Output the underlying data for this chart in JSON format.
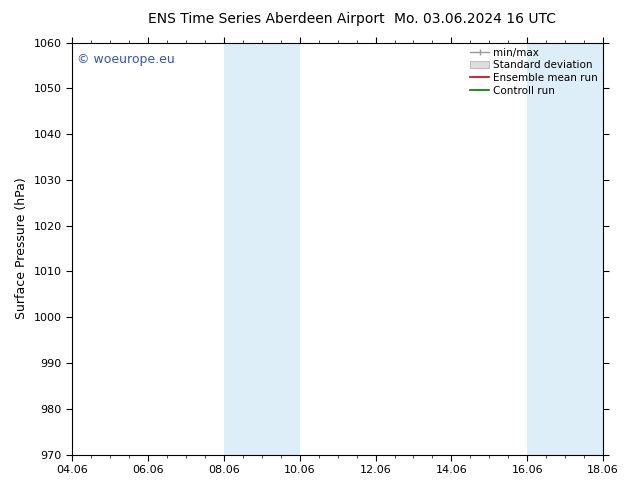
{
  "title_left": "ENS Time Series Aberdeen Airport",
  "title_right": "Mo. 03.06.2024 16 UTC",
  "ylabel": "Surface Pressure (hPa)",
  "ylim": [
    970,
    1060
  ],
  "yticks": [
    970,
    980,
    990,
    1000,
    1010,
    1020,
    1030,
    1040,
    1050,
    1060
  ],
  "xtick_labels": [
    "04.06",
    "06.06",
    "08.06",
    "10.06",
    "12.06",
    "14.06",
    "16.06",
    "18.06"
  ],
  "xtick_positions": [
    0,
    2,
    4,
    6,
    8,
    10,
    12,
    14
  ],
  "x_min": 0,
  "x_max": 14,
  "shaded_bands": [
    {
      "x_start": 4,
      "x_end": 6
    },
    {
      "x_start": 12,
      "x_end": 14
    }
  ],
  "shaded_color": "#ddeef9",
  "background_color": "#ffffff",
  "watermark_text": "© woeurope.eu",
  "watermark_color": "#3355bb",
  "legend_items": [
    {
      "label": "min/max",
      "color": "#999999",
      "type": "minmax"
    },
    {
      "label": "Standard deviation",
      "color": "#cccccc",
      "type": "band"
    },
    {
      "label": "Ensemble mean run",
      "color": "#cc0000",
      "type": "line"
    },
    {
      "label": "Controll run",
      "color": "#007700",
      "type": "line"
    }
  ],
  "title_fontsize": 10,
  "ylabel_fontsize": 9,
  "tick_fontsize": 8,
  "watermark_fontsize": 9,
  "legend_fontsize": 7.5,
  "figsize": [
    6.34,
    4.9
  ],
  "dpi": 100
}
